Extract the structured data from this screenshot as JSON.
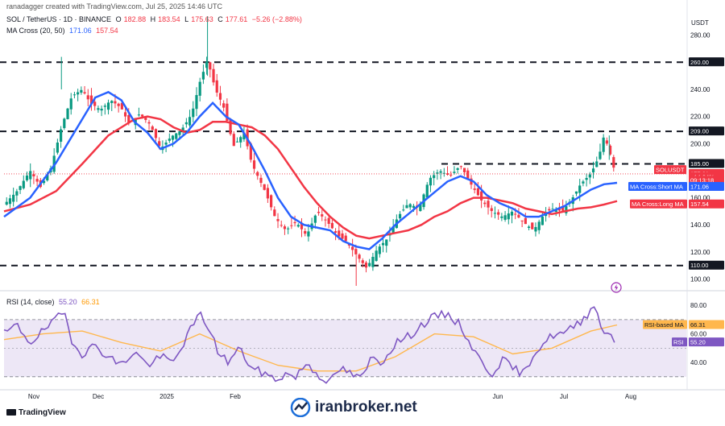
{
  "header": {
    "created_by": "ranadagger created with TradingView.com, Jul 25, 2025 14:46 UTC",
    "symbol": "SOL / TetherUS · 1D · BINANCE",
    "o_label": "O",
    "o_value": "182.88",
    "h_label": "H",
    "h_value": "183.54",
    "l_label": "L",
    "l_value": "175.63",
    "c_label": "C",
    "c_value": "177.61",
    "change": "−5.26 (−2.88%)",
    "ma_title": "MA Cross (20, 50)",
    "ma_short_value": "171.06",
    "ma_long_value": "157.54",
    "rsi_title": "RSI (14, close)",
    "rsi_value": "55.20",
    "rsi_ma_value": "66.31"
  },
  "price_axis": {
    "currency": "USDT",
    "ticks": [
      "280.00",
      "260.00",
      "240.00",
      "220.00",
      "209.00",
      "200.00",
      "185.00",
      "160.00",
      "140.00",
      "120.00",
      "110.00",
      "100.00"
    ],
    "tick_values": [
      280,
      260,
      240,
      220,
      209,
      200,
      185,
      160,
      140,
      120,
      110,
      100
    ],
    "labels": [
      {
        "text": "260.00",
        "value": 260,
        "kind": "level"
      },
      {
        "text": "209.00",
        "value": 209,
        "kind": "level"
      },
      {
        "text": "185.00",
        "value": 185,
        "kind": "level"
      },
      {
        "text": "110.00",
        "value": 110,
        "kind": "level"
      },
      {
        "text": "SOLUSDT",
        "value": 180.5,
        "kind": "symbol"
      },
      {
        "text": "177.61",
        "value": 177.61,
        "kind": "price"
      },
      {
        "text": "+14.64%",
        "value": 175.3,
        "kind": "pct"
      },
      {
        "text": "09:13:18",
        "value": 172.7,
        "kind": "timer"
      },
      {
        "text": "MA Cross:Short MA",
        "value": 171.06,
        "kind": "short"
      },
      {
        "text": "171.06",
        "value": 171.06,
        "kind": "shortval"
      },
      {
        "text": "MA Cross:Long MA",
        "value": 157.54,
        "kind": "long"
      },
      {
        "text": "157.54",
        "value": 157.54,
        "kind": "longval"
      }
    ]
  },
  "rsi_axis": {
    "ticks": [
      "80.00",
      "60.00",
      "40.00"
    ],
    "tick_values": [
      80,
      60,
      40
    ],
    "labels": [
      {
        "text": "RSI-based MA",
        "value": 66.31,
        "kind": "rsima"
      },
      {
        "text": "66.31",
        "value": 66.31,
        "kind": "rsimaval"
      },
      {
        "text": "RSI",
        "value": 55.2,
        "kind": "rsi"
      },
      {
        "text": "55.20",
        "value": 55.2,
        "kind": "rsival"
      }
    ]
  },
  "time_axis": {
    "labels": [
      "Nov",
      "Dec",
      "2025",
      "Feb",
      "Jun",
      "Jul",
      "Aug"
    ]
  },
  "footer": {
    "tradingview": "TradingView",
    "watermark": "iranbroker.net"
  },
  "colors": {
    "up": "#089981",
    "down": "#f23645",
    "ma_short": "#2962ff",
    "ma_long": "#f23645",
    "rsi": "#7e57c2",
    "rsi_ma": "#ffb74d",
    "level": "#131722",
    "band": "#ede7f6"
  },
  "chart_data": {
    "type": "candlestick",
    "title": "SOL / TetherUS · 1D · BINANCE",
    "ylabel": "USDT",
    "ylim": [
      92,
      300
    ],
    "horizontal_levels": [
      260,
      209,
      185,
      110
    ],
    "price_path": [
      [
        0,
        155
      ],
      [
        10,
        165
      ],
      [
        20,
        180
      ],
      [
        28,
        168
      ],
      [
        36,
        182
      ],
      [
        44,
        212
      ],
      [
        52,
        235
      ],
      [
        60,
        240
      ],
      [
        66,
        230
      ],
      [
        74,
        225
      ],
      [
        82,
        232
      ],
      [
        90,
        226
      ],
      [
        96,
        214
      ],
      [
        104,
        222
      ],
      [
        112,
        214
      ],
      [
        120,
        196
      ],
      [
        128,
        205
      ],
      [
        136,
        210
      ],
      [
        144,
        222
      ],
      [
        150,
        245
      ],
      [
        156,
        262
      ],
      [
        162,
        240
      ],
      [
        168,
        228
      ],
      [
        176,
        198
      ],
      [
        184,
        208
      ],
      [
        190,
        185
      ],
      [
        200,
        165
      ],
      [
        208,
        145
      ],
      [
        216,
        136
      ],
      [
        224,
        142
      ],
      [
        232,
        132
      ],
      [
        240,
        150
      ],
      [
        248,
        142
      ],
      [
        256,
        132
      ],
      [
        262,
        128
      ],
      [
        270,
        118
      ],
      [
        278,
        108
      ],
      [
        286,
        122
      ],
      [
        294,
        130
      ],
      [
        302,
        146
      ],
      [
        310,
        156
      ],
      [
        318,
        152
      ],
      [
        326,
        174
      ],
      [
        334,
        180
      ],
      [
        342,
        176
      ],
      [
        350,
        184
      ],
      [
        358,
        170
      ],
      [
        366,
        158
      ],
      [
        374,
        150
      ],
      [
        382,
        146
      ],
      [
        390,
        150
      ],
      [
        398,
        142
      ],
      [
        406,
        136
      ],
      [
        414,
        148
      ],
      [
        420,
        152
      ],
      [
        428,
        150
      ],
      [
        436,
        160
      ],
      [
        442,
        170
      ],
      [
        450,
        178
      ],
      [
        456,
        190
      ],
      [
        460,
        206
      ],
      [
        464,
        195
      ],
      [
        468,
        180
      ],
      [
        470,
        177.61
      ]
    ],
    "ma_short_path": [
      [
        0,
        146
      ],
      [
        20,
        160
      ],
      [
        40,
        186
      ],
      [
        60,
        218
      ],
      [
        70,
        234
      ],
      [
        80,
        238
      ],
      [
        90,
        232
      ],
      [
        100,
        216
      ],
      [
        110,
        208
      ],
      [
        120,
        196
      ],
      [
        130,
        200
      ],
      [
        140,
        208
      ],
      [
        150,
        220
      ],
      [
        160,
        230
      ],
      [
        170,
        220
      ],
      [
        180,
        214
      ],
      [
        190,
        198
      ],
      [
        200,
        180
      ],
      [
        210,
        160
      ],
      [
        220,
        146
      ],
      [
        230,
        140
      ],
      [
        240,
        138
      ],
      [
        250,
        136
      ],
      [
        260,
        128
      ],
      [
        270,
        124
      ],
      [
        280,
        122
      ],
      [
        290,
        130
      ],
      [
        300,
        140
      ],
      [
        310,
        148
      ],
      [
        320,
        156
      ],
      [
        330,
        164
      ],
      [
        340,
        172
      ],
      [
        350,
        176
      ],
      [
        360,
        172
      ],
      [
        370,
        162
      ],
      [
        380,
        156
      ],
      [
        390,
        152
      ],
      [
        400,
        146
      ],
      [
        410,
        146
      ],
      [
        420,
        150
      ],
      [
        430,
        154
      ],
      [
        440,
        160
      ],
      [
        450,
        166
      ],
      [
        460,
        170
      ],
      [
        470,
        171.06
      ]
    ],
    "ma_long_path": [
      [
        0,
        150
      ],
      [
        20,
        155
      ],
      [
        40,
        165
      ],
      [
        60,
        185
      ],
      [
        80,
        206
      ],
      [
        100,
        218
      ],
      [
        110,
        220
      ],
      [
        120,
        218
      ],
      [
        130,
        212
      ],
      [
        140,
        208
      ],
      [
        150,
        210
      ],
      [
        160,
        216
      ],
      [
        170,
        216
      ],
      [
        180,
        214
      ],
      [
        190,
        212
      ],
      [
        200,
        206
      ],
      [
        210,
        196
      ],
      [
        220,
        182
      ],
      [
        230,
        168
      ],
      [
        240,
        156
      ],
      [
        250,
        146
      ],
      [
        260,
        138
      ],
      [
        270,
        132
      ],
      [
        280,
        130
      ],
      [
        290,
        132
      ],
      [
        300,
        134
      ],
      [
        310,
        136
      ],
      [
        320,
        140
      ],
      [
        330,
        146
      ],
      [
        340,
        150
      ],
      [
        350,
        156
      ],
      [
        360,
        160
      ],
      [
        370,
        160
      ],
      [
        380,
        158
      ],
      [
        390,
        156
      ],
      [
        400,
        152
      ],
      [
        410,
        150
      ],
      [
        420,
        148
      ],
      [
        430,
        150
      ],
      [
        440,
        152
      ],
      [
        450,
        153
      ],
      [
        460,
        155
      ],
      [
        470,
        157.54
      ]
    ],
    "rsi": {
      "ylim": [
        22,
        88
      ],
      "band": [
        30,
        70
      ],
      "rsi_path": [
        [
          0,
          60
        ],
        [
          10,
          66
        ],
        [
          20,
          54
        ],
        [
          30,
          62
        ],
        [
          40,
          70
        ],
        [
          46,
          76
        ],
        [
          52,
          56
        ],
        [
          60,
          46
        ],
        [
          70,
          52
        ],
        [
          80,
          44
        ],
        [
          90,
          38
        ],
        [
          100,
          48
        ],
        [
          110,
          38
        ],
        [
          120,
          44
        ],
        [
          130,
          40
        ],
        [
          140,
          58
        ],
        [
          150,
          74
        ],
        [
          156,
          66
        ],
        [
          164,
          48
        ],
        [
          172,
          40
        ],
        [
          180,
          50
        ],
        [
          190,
          36
        ],
        [
          200,
          32
        ],
        [
          208,
          28
        ],
        [
          216,
          32
        ],
        [
          224,
          30
        ],
        [
          232,
          40
        ],
        [
          240,
          32
        ],
        [
          250,
          26
        ],
        [
          258,
          36
        ],
        [
          266,
          32
        ],
        [
          274,
          28
        ],
        [
          282,
          44
        ],
        [
          290,
          40
        ],
        [
          300,
          54
        ],
        [
          310,
          58
        ],
        [
          320,
          66
        ],
        [
          330,
          72
        ],
        [
          340,
          74
        ],
        [
          350,
          66
        ],
        [
          358,
          52
        ],
        [
          366,
          40
        ],
        [
          374,
          32
        ],
        [
          382,
          42
        ],
        [
          390,
          36
        ],
        [
          398,
          32
        ],
        [
          406,
          46
        ],
        [
          414,
          54
        ],
        [
          422,
          60
        ],
        [
          430,
          60
        ],
        [
          438,
          66
        ],
        [
          446,
          72
        ],
        [
          452,
          82
        ],
        [
          458,
          64
        ],
        [
          464,
          60
        ],
        [
          470,
          55.2
        ]
      ],
      "rsi_ma_path": [
        [
          0,
          56
        ],
        [
          30,
          60
        ],
        [
          60,
          62
        ],
        [
          90,
          54
        ],
        [
          120,
          48
        ],
        [
          150,
          60
        ],
        [
          180,
          48
        ],
        [
          210,
          38
        ],
        [
          240,
          34
        ],
        [
          270,
          34
        ],
        [
          300,
          44
        ],
        [
          330,
          60
        ],
        [
          360,
          58
        ],
        [
          390,
          46
        ],
        [
          420,
          50
        ],
        [
          450,
          62
        ],
        [
          470,
          66.31
        ]
      ]
    }
  }
}
